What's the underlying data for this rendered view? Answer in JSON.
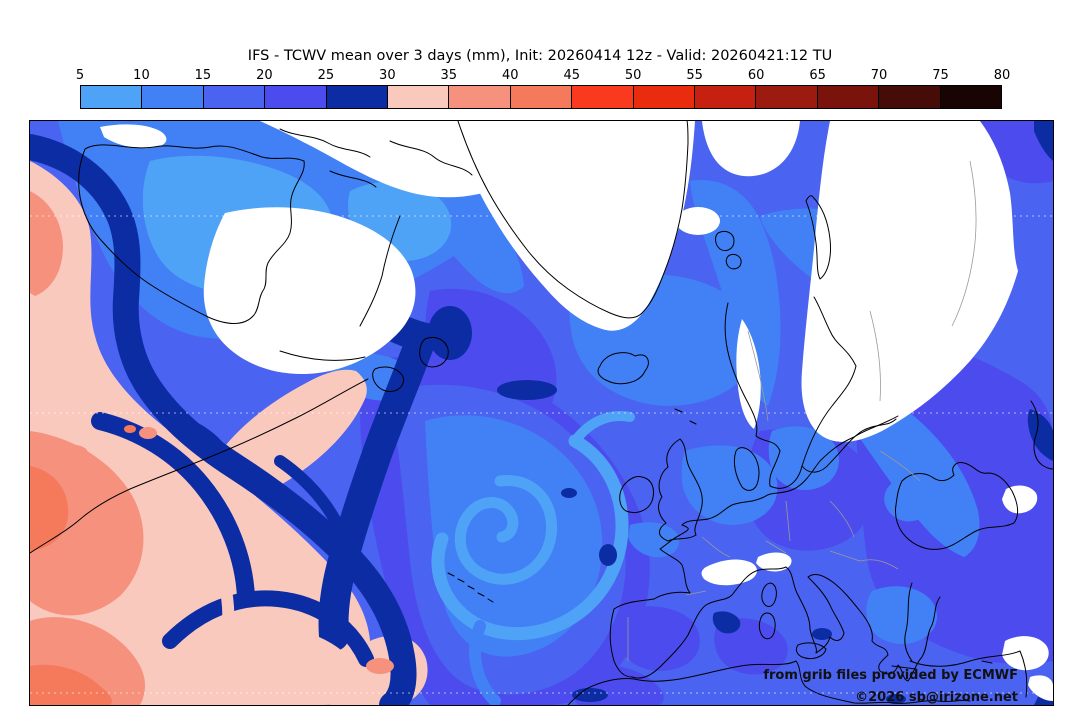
{
  "title": "IFS - TCWV mean over 3 days (mm), Init: 20260414 12z - Valid: 20260421:12 TU",
  "colorbar": {
    "unit": "mm",
    "ticks": [
      "5",
      "10",
      "15",
      "20",
      "25",
      "30",
      "35",
      "40",
      "45",
      "50",
      "55",
      "60",
      "65",
      "70",
      "75",
      "80"
    ],
    "segment_colors": [
      "#4FA3F7",
      "#4181F5",
      "#4A63F0",
      "#4C4BEE",
      "#0C2CA4",
      "#FAC9BE",
      "#F6917E",
      "#F5795B",
      "#FA3A1E",
      "#E92B0E",
      "#C62110",
      "#9B1B10",
      "#7B130D",
      "#460C07",
      "#170403"
    ]
  },
  "map": {
    "attribution_line1": "from grib files provided by ECMWF",
    "attribution_line2": "©2026 sb@irizone.net"
  },
  "palette": {
    "c05": "#4FA3F7",
    "c10": "#4181F5",
    "c15": "#4A63F0",
    "c20": "#4C4BEE",
    "c25": "#0C2CA4",
    "c30": "#FAC9BE",
    "c35": "#F6917E",
    "c40": "#F5795B",
    "land_dry": "#FFFFFF",
    "coastline": "#000000",
    "country_border": "#9A9A9A"
  }
}
